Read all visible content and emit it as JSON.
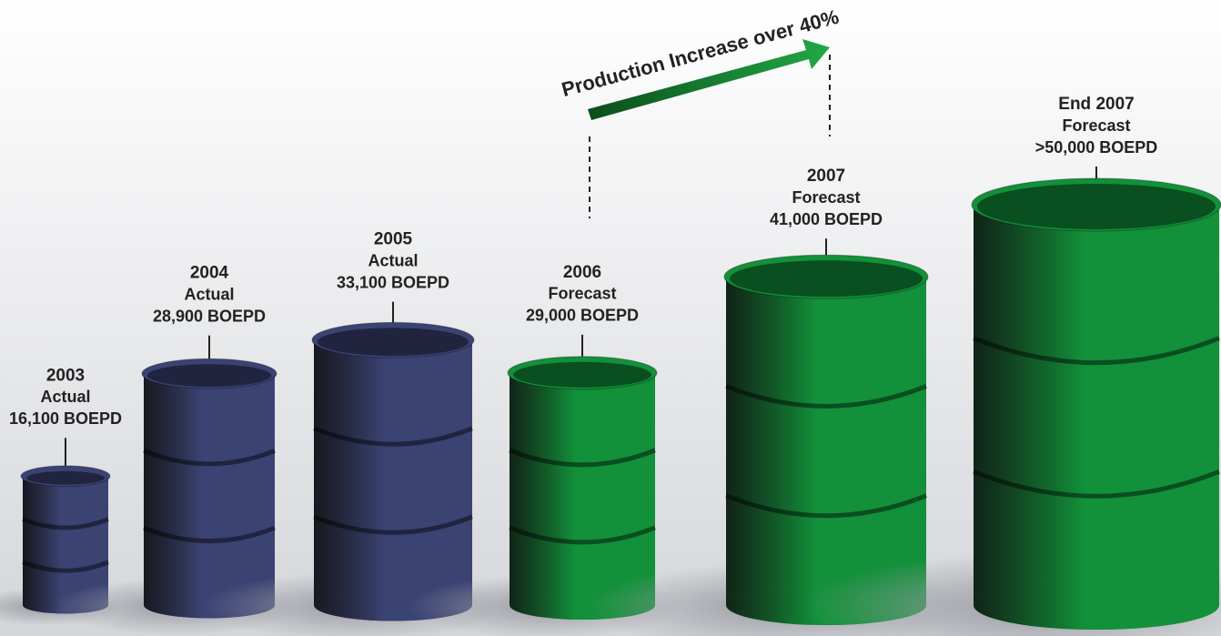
{
  "chart_data": {
    "type": "barrel",
    "annotation": "Production Increase over 40%",
    "categories": [
      "2003",
      "2004",
      "2005",
      "2006",
      "2007",
      "End 2007"
    ],
    "status": [
      "Actual",
      "Actual",
      "Actual",
      "Forecast",
      "Forecast",
      "Forecast"
    ],
    "values": [
      16100,
      28900,
      33100,
      29000,
      41000,
      50000
    ],
    "value_labels": [
      "16,100 BOEPD",
      "28,900 BOEPD",
      "33,100 BOEPD",
      "29,000 BOEPD",
      "41,000 BOEPD",
      ">50,000 BOEPD"
    ],
    "colors": [
      "#3b4373",
      "#3b4373",
      "#3b4373",
      "#12903a",
      "#12903a",
      "#12903a"
    ]
  }
}
